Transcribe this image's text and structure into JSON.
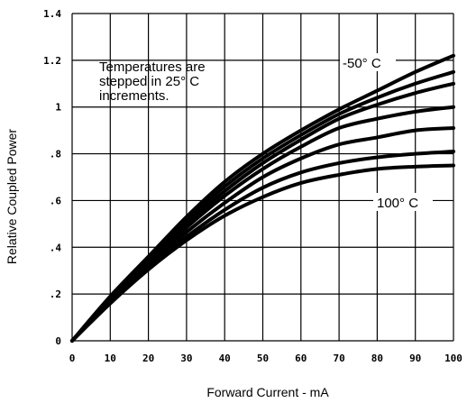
{
  "chart_data": {
    "type": "line",
    "xlabel": "Forward Current - mA",
    "ylabel": "Relative Coupled Power",
    "xlim": [
      0,
      100
    ],
    "ylim": [
      0,
      1.4
    ],
    "x_ticks": [
      "0",
      "10",
      "20",
      "30",
      "40",
      "50",
      "60",
      "70",
      "80",
      "90",
      "100"
    ],
    "y_ticks": [
      "0",
      ".2",
      ".4",
      ".6",
      ".8",
      "1",
      "1.2",
      "1.4"
    ],
    "grid": true,
    "annotations": {
      "note_lines": [
        "Temperatures are",
        "stepped in 25° C",
        "increments."
      ],
      "top_label": "-50° C",
      "bottom_label": "100° C"
    },
    "x": [
      0,
      10,
      20,
      30,
      40,
      50,
      60,
      70,
      80,
      90,
      100
    ],
    "series": [
      {
        "values": [
          0,
          0.19,
          0.36,
          0.53,
          0.68,
          0.8,
          0.9,
          0.99,
          1.07,
          1.15,
          1.22
        ]
      },
      {
        "values": [
          0,
          0.185,
          0.355,
          0.515,
          0.66,
          0.78,
          0.88,
          0.97,
          1.04,
          1.1,
          1.15
        ]
      },
      {
        "values": [
          0,
          0.18,
          0.345,
          0.5,
          0.64,
          0.76,
          0.86,
          0.95,
          1.01,
          1.06,
          1.1
        ]
      },
      {
        "values": [
          0,
          0.175,
          0.335,
          0.485,
          0.62,
          0.735,
          0.83,
          0.91,
          0.95,
          0.98,
          1.0
        ]
      },
      {
        "values": [
          0,
          0.17,
          0.325,
          0.465,
          0.59,
          0.7,
          0.78,
          0.84,
          0.87,
          0.9,
          0.91
        ]
      },
      {
        "values": [
          0,
          0.165,
          0.315,
          0.445,
          0.56,
          0.655,
          0.72,
          0.76,
          0.785,
          0.8,
          0.81
        ]
      },
      {
        "values": [
          0,
          0.16,
          0.305,
          0.43,
          0.535,
          0.615,
          0.675,
          0.71,
          0.735,
          0.745,
          0.75
        ]
      }
    ]
  }
}
